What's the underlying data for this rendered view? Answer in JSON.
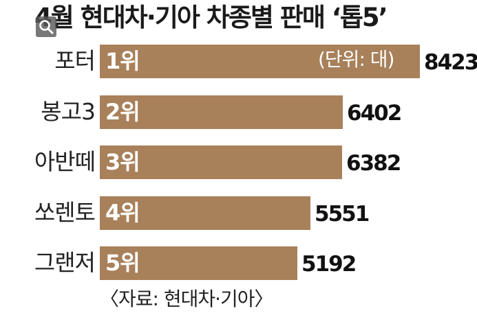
{
  "chart_data": {
    "type": "bar",
    "orientation": "horizontal",
    "title": "4월 현대차·기아 차종별 판매 ‘톱5’",
    "unit_label": "(단위: 대)",
    "source": "〈자료: 현대차·기아〉",
    "categories": [
      "포터",
      "봉고3",
      "아반떼",
      "쏘렌토",
      "그랜저"
    ],
    "ranks": [
      "1위",
      "2위",
      "3위",
      "4위",
      "5위"
    ],
    "values": [
      8423,
      6402,
      6382,
      5551,
      5192
    ],
    "xlim": [
      0,
      8423
    ],
    "grid": false,
    "legend": "none",
    "bar_color": "#a8805a"
  },
  "icons": {
    "zoom": "search-icon"
  }
}
